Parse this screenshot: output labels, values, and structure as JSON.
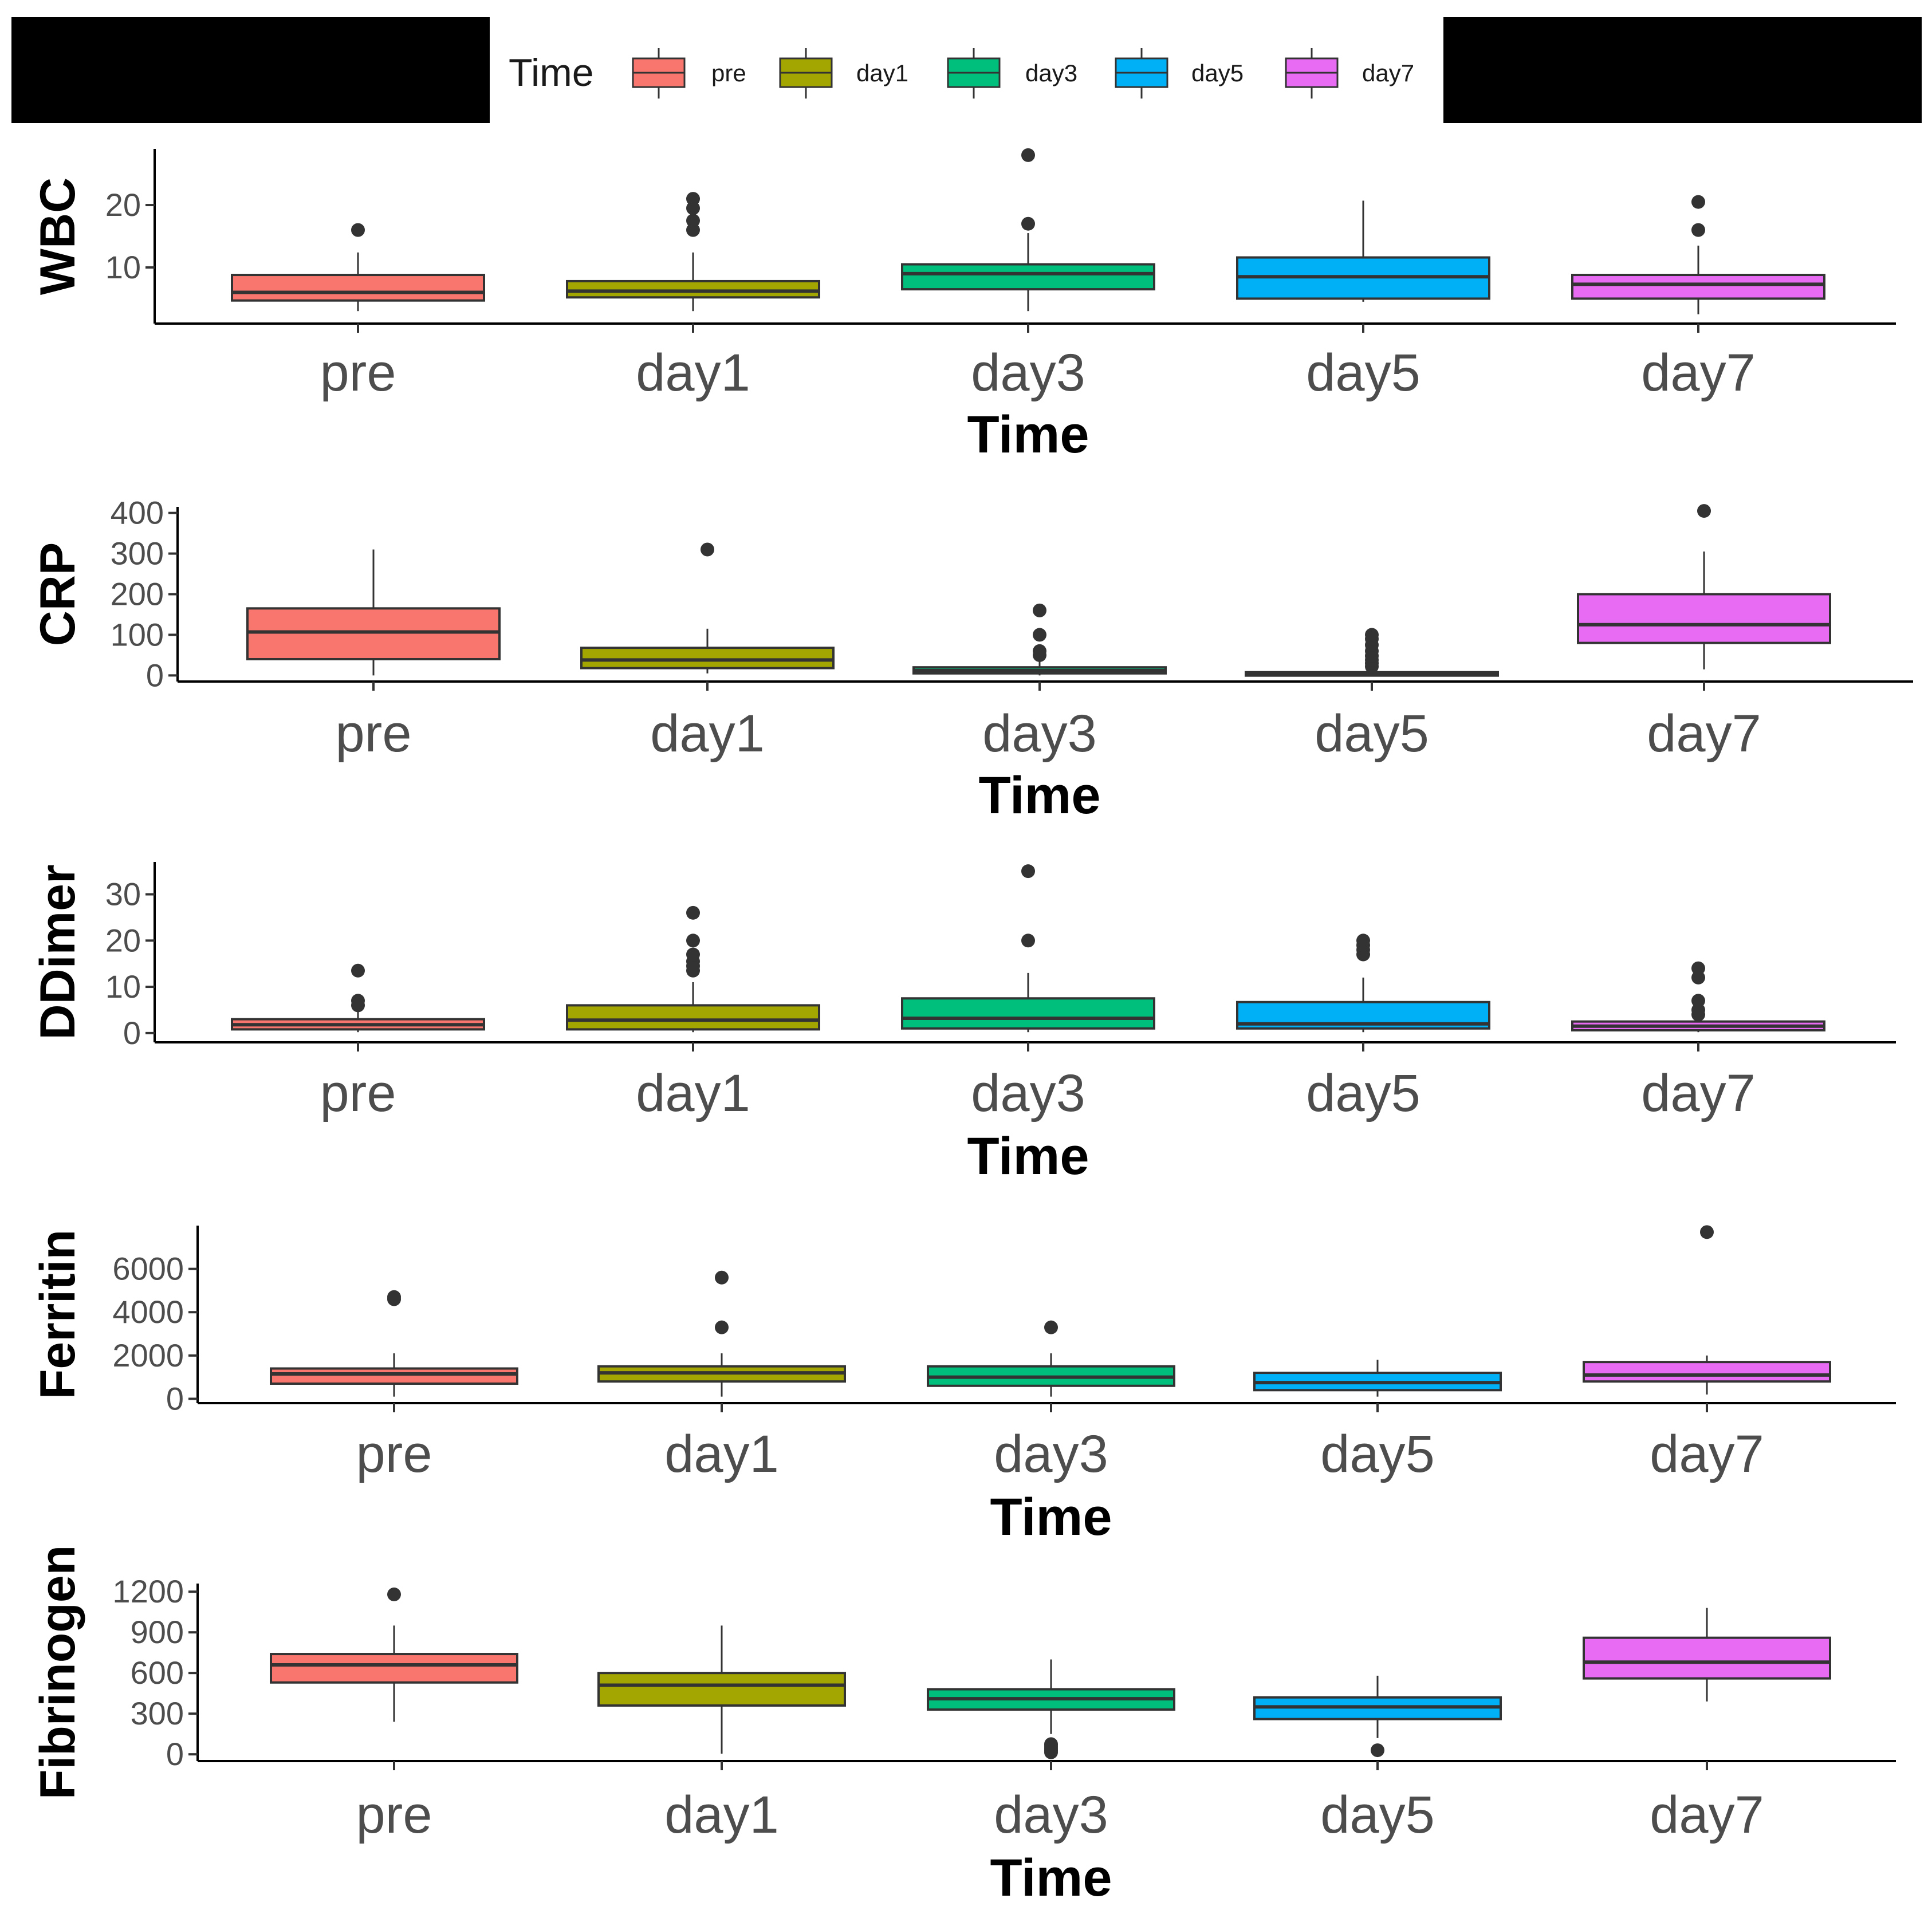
{
  "legend": {
    "title": "Time",
    "entries": [
      "pre",
      "day1",
      "day3",
      "day5",
      "day7"
    ],
    "colors": [
      "#F8766D",
      "#A3A500",
      "#00BF7D",
      "#00B0F6",
      "#E76BF3"
    ]
  },
  "chart_data": [
    {
      "type": "box",
      "title": "",
      "xlabel": "Time",
      "ylabel": "WBC",
      "categories": [
        "pre",
        "day1",
        "day3",
        "day5",
        "day7"
      ],
      "ylim": [
        1,
        29
      ],
      "yticks": [
        10,
        20
      ],
      "boxes": [
        {
          "min": 3,
          "q1": 4.7,
          "median": 6.0,
          "q3": 8.8,
          "max": 12.4,
          "outliers": [
            16
          ]
        },
        {
          "min": 3,
          "q1": 5.2,
          "median": 6.2,
          "q3": 7.8,
          "max": 12.4,
          "outliers": [
            16,
            17.5,
            19.5,
            21
          ]
        },
        {
          "min": 3,
          "q1": 6.5,
          "median": 9.0,
          "q3": 10.5,
          "max": 15.5,
          "outliers": [
            17,
            28
          ]
        },
        {
          "min": 4.5,
          "q1": 5.0,
          "median": 8.5,
          "q3": 11.6,
          "max": 20.7,
          "outliers": []
        },
        {
          "min": 2.5,
          "q1": 5.0,
          "median": 7.3,
          "q3": 8.8,
          "max": 13.5,
          "outliers": [
            16,
            20.5
          ]
        }
      ]
    },
    {
      "type": "box",
      "title": "",
      "xlabel": "Time",
      "ylabel": "CRP",
      "categories": [
        "pre",
        "day1",
        "day3",
        "day5",
        "day7"
      ],
      "ylim": [
        -15,
        415
      ],
      "yticks": [
        0,
        100,
        200,
        300,
        400
      ],
      "boxes": [
        {
          "min": 0,
          "q1": 40,
          "median": 107,
          "q3": 165,
          "max": 310,
          "outliers": []
        },
        {
          "min": 5,
          "q1": 18,
          "median": 38,
          "q3": 68,
          "max": 115,
          "outliers": [
            310
          ]
        },
        {
          "min": 0,
          "q1": 5,
          "median": 12,
          "q3": 20,
          "max": 42,
          "outliers": [
            50,
            60,
            100,
            160
          ]
        },
        {
          "min": 0,
          "q1": 2,
          "median": 5,
          "q3": 8,
          "max": 15,
          "outliers": [
            22,
            30,
            38,
            48,
            60,
            75,
            90,
            100
          ]
        },
        {
          "min": 15,
          "q1": 80,
          "median": 125,
          "q3": 200,
          "max": 305,
          "outliers": [
            405
          ]
        }
      ]
    },
    {
      "type": "box",
      "title": "",
      "xlabel": "Time",
      "ylabel": "DDimer",
      "categories": [
        "pre",
        "day1",
        "day3",
        "day5",
        "day7"
      ],
      "ylim": [
        -2,
        37
      ],
      "yticks": [
        0,
        10,
        20,
        30
      ],
      "boxes": [
        {
          "min": 0.2,
          "q1": 0.8,
          "median": 1.8,
          "q3": 3.0,
          "max": 5.5,
          "outliers": [
            6,
            7,
            13.5
          ]
        },
        {
          "min": 0.2,
          "q1": 0.8,
          "median": 2.8,
          "q3": 6.0,
          "max": 11,
          "outliers": [
            13.5,
            14.5,
            15.5,
            17,
            20,
            26
          ]
        },
        {
          "min": 0.2,
          "q1": 1.0,
          "median": 3.2,
          "q3": 7.5,
          "max": 13,
          "outliers": [
            20,
            35
          ]
        },
        {
          "min": 0.2,
          "q1": 1.0,
          "median": 2.0,
          "q3": 6.7,
          "max": 12,
          "outliers": [
            17,
            18,
            19,
            20
          ]
        },
        {
          "min": 0.2,
          "q1": 0.6,
          "median": 1.5,
          "q3": 2.5,
          "max": 3.5,
          "outliers": [
            4,
            5,
            7,
            12,
            14
          ]
        }
      ]
    },
    {
      "type": "box",
      "title": "",
      "xlabel": "Time",
      "ylabel": "Ferritin",
      "categories": [
        "pre",
        "day1",
        "day3",
        "day5",
        "day7"
      ],
      "ylim": [
        -200,
        8000
      ],
      "yticks": [
        0,
        2000,
        4000,
        6000
      ],
      "boxes": [
        {
          "min": 100,
          "q1": 700,
          "median": 1150,
          "q3": 1400,
          "max": 2100,
          "outliers": [
            4600,
            4700
          ]
        },
        {
          "min": 100,
          "q1": 800,
          "median": 1200,
          "q3": 1500,
          "max": 2100,
          "outliers": [
            3300,
            5600
          ]
        },
        {
          "min": 100,
          "q1": 600,
          "median": 1000,
          "q3": 1500,
          "max": 2100,
          "outliers": [
            3300
          ]
        },
        {
          "min": 100,
          "q1": 400,
          "median": 750,
          "q3": 1200,
          "max": 1800,
          "outliers": []
        },
        {
          "min": 200,
          "q1": 800,
          "median": 1100,
          "q3": 1700,
          "max": 2000,
          "outliers": [
            7700
          ]
        }
      ]
    },
    {
      "type": "box",
      "title": "",
      "xlabel": "Time",
      "ylabel": "Fibrinogen",
      "categories": [
        "pre",
        "day1",
        "day3",
        "day5",
        "day7"
      ],
      "ylim": [
        -50,
        1260
      ],
      "yticks": [
        0,
        300,
        600,
        900,
        1200
      ],
      "boxes": [
        {
          "min": 240,
          "q1": 530,
          "median": 660,
          "q3": 740,
          "max": 950,
          "outliers": [
            1180
          ]
        },
        {
          "min": 5,
          "q1": 360,
          "median": 510,
          "q3": 600,
          "max": 950,
          "outliers": []
        },
        {
          "min": 150,
          "q1": 330,
          "median": 410,
          "q3": 480,
          "max": 700,
          "outliers": [
            15,
            30,
            45,
            60,
            75
          ]
        },
        {
          "min": 120,
          "q1": 260,
          "median": 350,
          "q3": 420,
          "max": 580,
          "outliers": [
            30
          ]
        },
        {
          "min": 390,
          "q1": 560,
          "median": 680,
          "q3": 860,
          "max": 1080,
          "outliers": []
        }
      ]
    }
  ]
}
